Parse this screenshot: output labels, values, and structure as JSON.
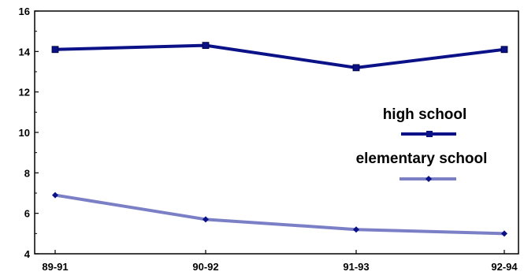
{
  "chart_data": {
    "type": "line",
    "categories": [
      "89-91",
      "90-92",
      "91-93",
      "92-94"
    ],
    "series": [
      {
        "name": "high school",
        "values": [
          14.1,
          14.3,
          13.2,
          14.1
        ],
        "color": "#0b1287",
        "marker": "square"
      },
      {
        "name": "elementary school",
        "values": [
          6.9,
          5.7,
          5.2,
          5.0
        ],
        "color": "#7b7fc6",
        "marker": "diamond",
        "marker_color": "#0b1287"
      }
    ],
    "ylim": [
      4,
      16
    ],
    "yticks": [
      "4",
      "6",
      "8",
      "10",
      "12",
      "14",
      "16"
    ],
    "grid": false,
    "legend_position": "right"
  }
}
